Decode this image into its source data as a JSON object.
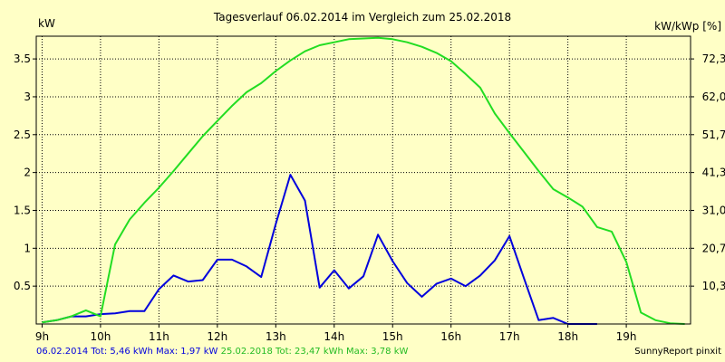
{
  "chart_data": {
    "type": "line",
    "title": "Tagesverlauf 06.02.2014 im Vergleich zum 25.02.2018",
    "ylabel_left": "kW",
    "ylabel_right": "kW/kWp [%]",
    "xlim": [
      8.9,
      20.1
    ],
    "ylim": [
      0,
      3.8
    ],
    "x_ticks": [
      9,
      10,
      11,
      12,
      13,
      14,
      15,
      16,
      17,
      18,
      19
    ],
    "x_tick_labels": [
      "9h",
      "10h",
      "11h",
      "12h",
      "13h",
      "14h",
      "15h",
      "16h",
      "17h",
      "18h",
      "19h"
    ],
    "y_ticks": [
      0.5,
      1,
      1.5,
      2,
      2.5,
      3,
      3.5
    ],
    "y_tick_labels": [
      "0.5",
      "1",
      "1.5",
      "2",
      "2.5",
      "3",
      "3.5"
    ],
    "y2_ticks": [
      0.5,
      1,
      1.5,
      2,
      2.5,
      3,
      3.5
    ],
    "y2_tick_labels": [
      "10,3",
      "20,7",
      "31,0",
      "41,3",
      "51,7",
      "62,0",
      "72,3"
    ],
    "grid": true,
    "series": [
      {
        "name": "06.02.2014",
        "color": "#0000dd",
        "x": [
          9.0,
          9.25,
          9.5,
          9.75,
          10.0,
          10.25,
          10.5,
          10.75,
          11.0,
          11.25,
          11.5,
          11.75,
          12.0,
          12.25,
          12.5,
          12.75,
          13.0,
          13.25,
          13.5,
          13.75,
          14.0,
          14.25,
          14.5,
          14.75,
          15.0,
          15.25,
          15.5,
          15.75,
          16.0,
          16.25,
          16.5,
          16.75,
          17.0,
          17.25,
          17.5,
          17.75,
          18.0,
          18.25,
          18.5
        ],
        "values": [
          0.02,
          0.05,
          0.1,
          0.1,
          0.13,
          0.14,
          0.17,
          0.17,
          0.46,
          0.64,
          0.56,
          0.58,
          0.85,
          0.85,
          0.76,
          0.62,
          1.32,
          1.97,
          1.63,
          0.48,
          0.71,
          0.47,
          0.63,
          1.18,
          0.83,
          0.54,
          0.36,
          0.53,
          0.6,
          0.5,
          0.64,
          0.84,
          1.16,
          0.6,
          0.05,
          0.08,
          0.0,
          0.0,
          0.0
        ]
      },
      {
        "name": "25.02.2018",
        "color": "#22dd22",
        "x": [
          9.0,
          9.25,
          9.5,
          9.75,
          10.0,
          10.25,
          10.5,
          10.75,
          11.0,
          11.25,
          11.5,
          11.75,
          12.0,
          12.25,
          12.5,
          12.75,
          13.0,
          13.25,
          13.5,
          13.75,
          14.0,
          14.25,
          14.5,
          14.75,
          15.0,
          15.25,
          15.5,
          15.75,
          16.0,
          16.25,
          16.5,
          16.75,
          17.0,
          17.25,
          17.5,
          17.75,
          18.0,
          18.25,
          18.5,
          18.75,
          19.0,
          19.25,
          19.5,
          19.75,
          20.0
        ],
        "values": [
          0.02,
          0.05,
          0.1,
          0.18,
          0.1,
          1.05,
          1.38,
          1.6,
          1.8,
          2.02,
          2.25,
          2.48,
          2.68,
          2.88,
          3.06,
          3.18,
          3.34,
          3.48,
          3.6,
          3.68,
          3.72,
          3.76,
          3.77,
          3.78,
          3.76,
          3.72,
          3.66,
          3.58,
          3.47,
          3.3,
          3.12,
          2.78,
          2.52,
          2.27,
          2.02,
          1.78,
          1.67,
          1.55,
          1.28,
          1.22,
          0.82,
          0.15,
          0.05,
          0.01,
          0.0
        ]
      }
    ]
  },
  "footer": {
    "series1_text": "06.02.2014 Tot: 5,46 kWh Max: 1,97 kW",
    "series2_text": "25.02.2018 Tot: 23,47 kWh Max: 3,78 kW",
    "credit": "SunnyReport pinxit"
  }
}
